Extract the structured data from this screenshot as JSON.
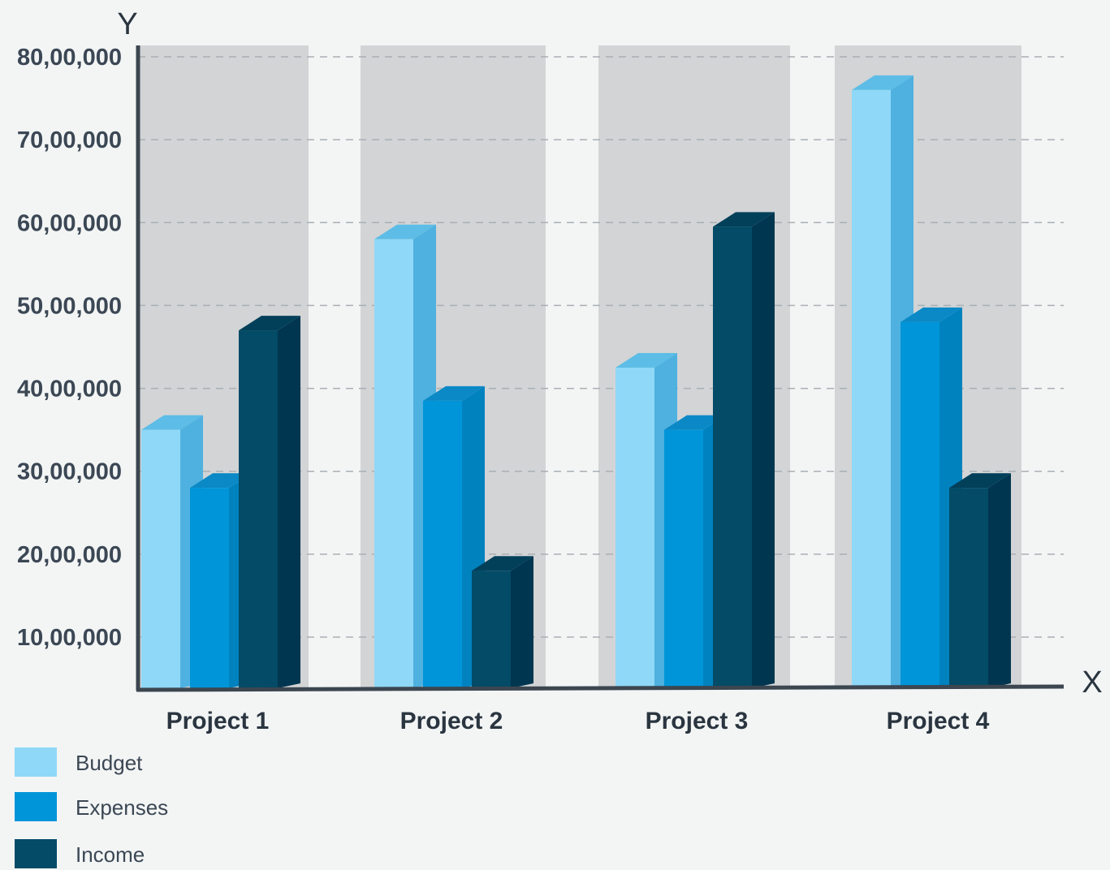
{
  "chart_data": {
    "type": "bar",
    "xlabel": "X",
    "ylabel": "Y",
    "categories": [
      "Project 1",
      "Project 2",
      "Project 3",
      "Project 4"
    ],
    "series": [
      {
        "name": "Budget",
        "values": [
          3500000,
          5800000,
          4250000,
          7600000
        ]
      },
      {
        "name": "Expenses",
        "values": [
          2800000,
          3850000,
          3500000,
          4800000
        ]
      },
      {
        "name": "Income",
        "values": [
          4700000,
          1800000,
          5950000,
          2800000
        ]
      }
    ],
    "y_ticks": [
      {
        "value": 1000000,
        "label": "10,00,000"
      },
      {
        "value": 2000000,
        "label": "20,00,000"
      },
      {
        "value": 3000000,
        "label": "30,00,000"
      },
      {
        "value": 4000000,
        "label": "40,00,000"
      },
      {
        "value": 5000000,
        "label": "50,00,000"
      },
      {
        "value": 6000000,
        "label": "60,00,000"
      },
      {
        "value": 7000000,
        "label": "70,00,000"
      },
      {
        "value": 8000000,
        "label": "80,00,000"
      }
    ],
    "ylim": [
      0,
      8000000
    ],
    "grid": true,
    "legend_position": "bottom-left",
    "colors": {
      "Budget": {
        "front": "#8fd8f7",
        "side": "#4fb1df",
        "top": "#5dbde6"
      },
      "Expenses": {
        "front": "#0095d9",
        "side": "#0082bf",
        "top": "#0a89c6"
      },
      "Income": {
        "front": "#034b66",
        "side": "#013650",
        "top": "#02405a"
      },
      "panel": "#d2d4d6",
      "axis": "#3c4650",
      "grid": "#a9afb4"
    }
  }
}
